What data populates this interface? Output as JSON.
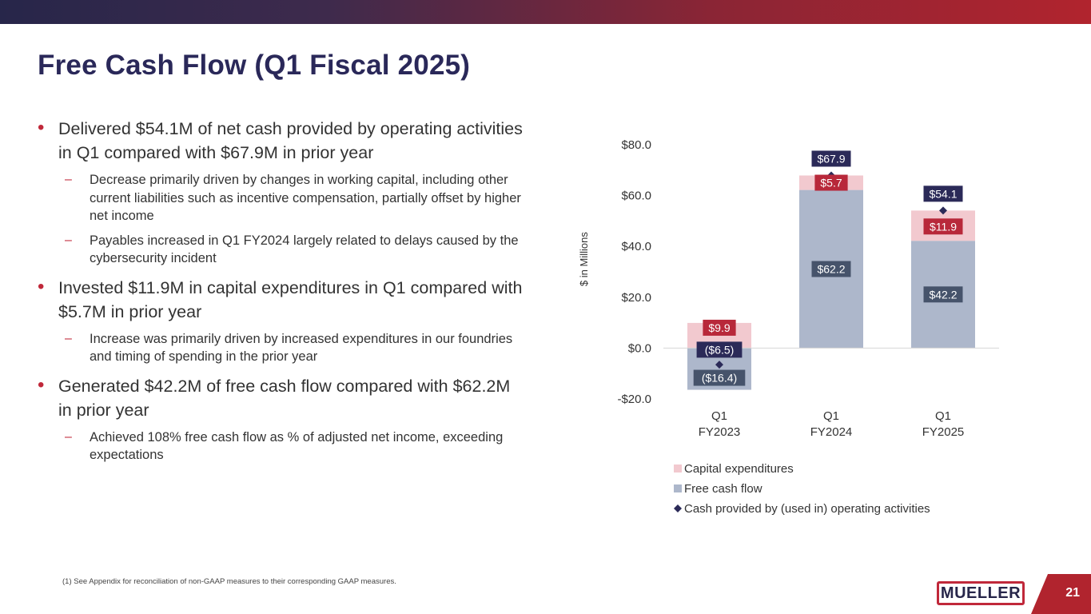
{
  "title": "Free Cash Flow (Q1 Fiscal 2025)",
  "bullets": [
    {
      "text": "Delivered $54.1M of net cash provided by operating activities in Q1 compared with $67.9M in prior year",
      "subs": [
        "Decrease primarily driven by changes in working capital, including other current liabilities such as incentive compensation, partially offset by higher net income",
        "Payables increased in Q1 FY2024 largely related to delays caused by the cybersecurity incident"
      ]
    },
    {
      "text": "Invested $11.9M in capital expenditures in Q1 compared with $5.7M in prior year",
      "subs": [
        "Increase was primarily driven by increased expenditures in our foundries and timing of spending in the prior year"
      ]
    },
    {
      "text": "Generated $42.2M of free cash flow compared with $62.2M in prior year",
      "subs": [
        "Achieved 108% free cash flow as % of adjusted net income, exceeding expectations"
      ]
    }
  ],
  "footnote": "(1)  See Appendix for reconciliation of non-GAAP measures to their corresponding GAAP measures.",
  "logo_text": "MUELLER",
  "page_number": "21",
  "colors": {
    "navy": "#2a2859",
    "red": "#c0283a",
    "capex": "#f2c9cf",
    "fcf": "#adb7cb",
    "fcf_label_bg": "#46536b",
    "capex_label_bg": "#b8283a",
    "ocf_label_bg": "#2b2a58"
  },
  "chart_data": {
    "type": "bar",
    "stacked": true,
    "categories": [
      [
        "Q1",
        "FY2023"
      ],
      [
        "Q1",
        "FY2024"
      ],
      [
        "Q1",
        "FY2025"
      ]
    ],
    "ylabel": "$ in Millions",
    "ylim": [
      -20,
      80
    ],
    "yticks": [
      80,
      60,
      40,
      20,
      0,
      -20
    ],
    "ytick_labels": [
      "$80.0",
      "$60.0",
      "$40.0",
      "$20.0",
      "$0.0",
      "-$20.0"
    ],
    "grid": false,
    "legend_position": "bottom",
    "series": [
      {
        "name": "Capital expenditures",
        "kind": "bar",
        "values": [
          9.9,
          5.7,
          11.9
        ],
        "labels": [
          "$9.9",
          "$5.7",
          "$11.9"
        ]
      },
      {
        "name": "Free cash flow",
        "kind": "bar",
        "values": [
          -16.4,
          62.2,
          42.2
        ],
        "labels": [
          "($16.4)",
          "$62.2",
          "$42.2"
        ]
      },
      {
        "name": "Cash provided by (used in) operating activities",
        "kind": "marker",
        "values": [
          -6.5,
          67.9,
          54.1
        ],
        "labels": [
          "($6.5)",
          "$67.9",
          "$54.1"
        ]
      }
    ]
  }
}
